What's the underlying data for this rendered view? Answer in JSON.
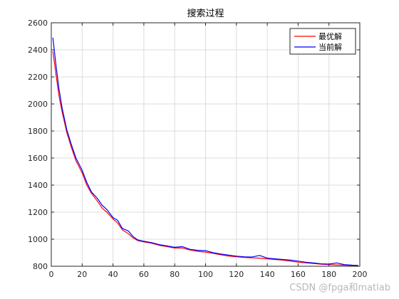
{
  "chart_data": {
    "type": "line",
    "title": "搜索过程",
    "xlabel": "",
    "ylabel": "",
    "xlim": [
      0,
      200
    ],
    "ylim": [
      800,
      2600
    ],
    "xticks": [
      0,
      20,
      40,
      60,
      80,
      100,
      120,
      140,
      160,
      180,
      200
    ],
    "yticks": [
      800,
      1000,
      1200,
      1400,
      1600,
      1800,
      2000,
      2200,
      2400,
      2600
    ],
    "grid": true,
    "legend_position": "top-right",
    "series": [
      {
        "name": "最优解",
        "color": "#ff0000",
        "x": [
          1,
          3,
          5,
          7,
          10,
          13,
          16,
          20,
          23,
          26,
          30,
          33,
          36,
          40,
          43,
          46,
          50,
          53,
          56,
          60,
          65,
          70,
          75,
          80,
          85,
          90,
          95,
          100,
          105,
          110,
          115,
          120,
          125,
          130,
          135,
          140,
          145,
          150,
          155,
          160,
          165,
          170,
          175,
          180,
          185,
          190,
          195,
          199
        ],
        "y": [
          2390,
          2220,
          2060,
          1940,
          1790,
          1680,
          1580,
          1490,
          1400,
          1340,
          1280,
          1230,
          1200,
          1150,
          1120,
          1070,
          1040,
          1010,
          990,
          980,
          970,
          955,
          945,
          935,
          935,
          920,
          910,
          905,
          895,
          885,
          875,
          870,
          865,
          862,
          860,
          855,
          850,
          845,
          838,
          830,
          825,
          820,
          815,
          812,
          810,
          808,
          806,
          805
        ]
      },
      {
        "name": "当前解",
        "color": "#0000ff",
        "x": [
          1,
          3,
          5,
          7,
          10,
          13,
          16,
          20,
          23,
          26,
          30,
          33,
          36,
          40,
          43,
          46,
          50,
          53,
          56,
          60,
          65,
          70,
          75,
          80,
          85,
          90,
          95,
          100,
          105,
          110,
          115,
          120,
          125,
          130,
          135,
          140,
          145,
          150,
          155,
          160,
          165,
          170,
          175,
          180,
          185,
          190,
          195,
          199
        ],
        "y": [
          2490,
          2290,
          2110,
          1970,
          1810,
          1700,
          1600,
          1510,
          1420,
          1350,
          1300,
          1250,
          1220,
          1160,
          1140,
          1080,
          1060,
          1020,
          995,
          985,
          975,
          960,
          950,
          940,
          945,
          925,
          918,
          915,
          900,
          890,
          882,
          875,
          870,
          868,
          880,
          860,
          855,
          850,
          845,
          838,
          830,
          825,
          818,
          816,
          825,
          812,
          808,
          806
        ]
      }
    ]
  },
  "watermark": "CSDN @fpga和matlab"
}
